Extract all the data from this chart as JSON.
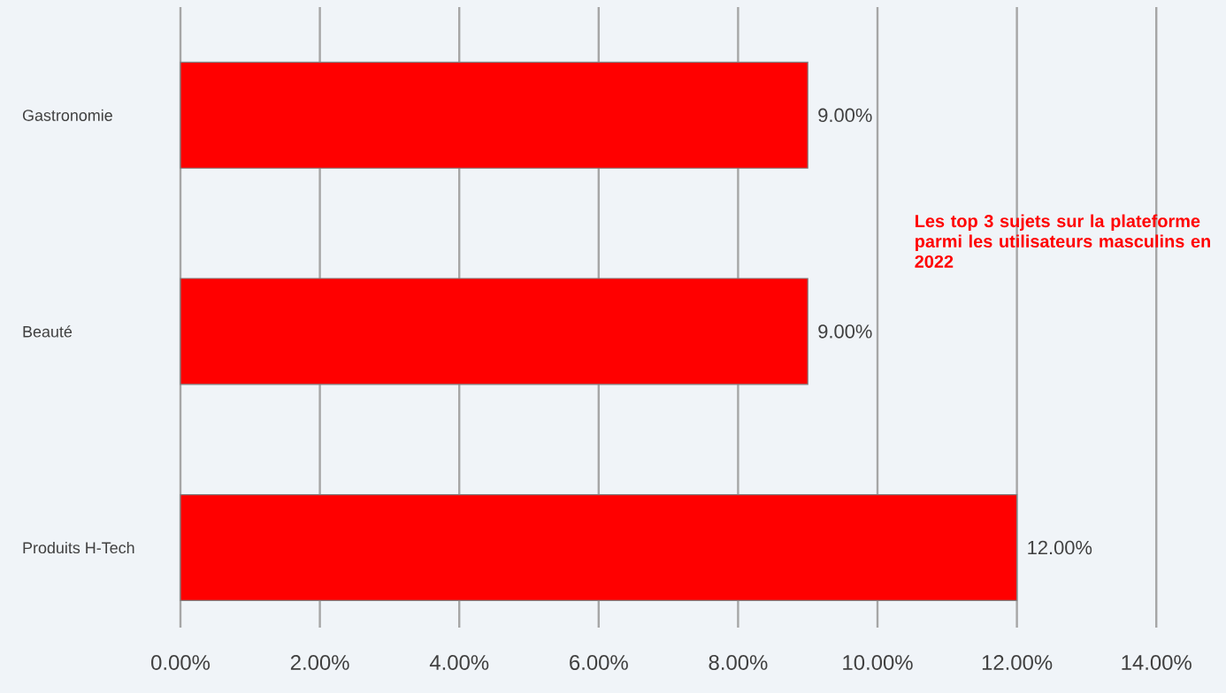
{
  "chart_data": {
    "type": "bar",
    "orientation": "horizontal",
    "title": "Les top 3 sujets sur la plateforme parmi les utilisateurs masculins en 2022",
    "categories": [
      "Gastronomie",
      "Beauté",
      "Produits H-Tech"
    ],
    "values": [
      9,
      9,
      12
    ],
    "value_labels": [
      "9.00%",
      "9.00%",
      "12.00%"
    ],
    "color": "#ff0000",
    "xlim": [
      0,
      14
    ],
    "xticks": [
      {
        "value": 0,
        "label": "0.00%"
      },
      {
        "value": 2,
        "label": "2.00%"
      },
      {
        "value": 4,
        "label": "4.00%"
      },
      {
        "value": 6,
        "label": "6.00%"
      },
      {
        "value": 8,
        "label": "8.00%"
      },
      {
        "value": 10,
        "label": "10.00%"
      },
      {
        "value": 12,
        "label": "12.00%"
      },
      {
        "value": 14,
        "label": "14.00%"
      }
    ],
    "grid": "x"
  }
}
